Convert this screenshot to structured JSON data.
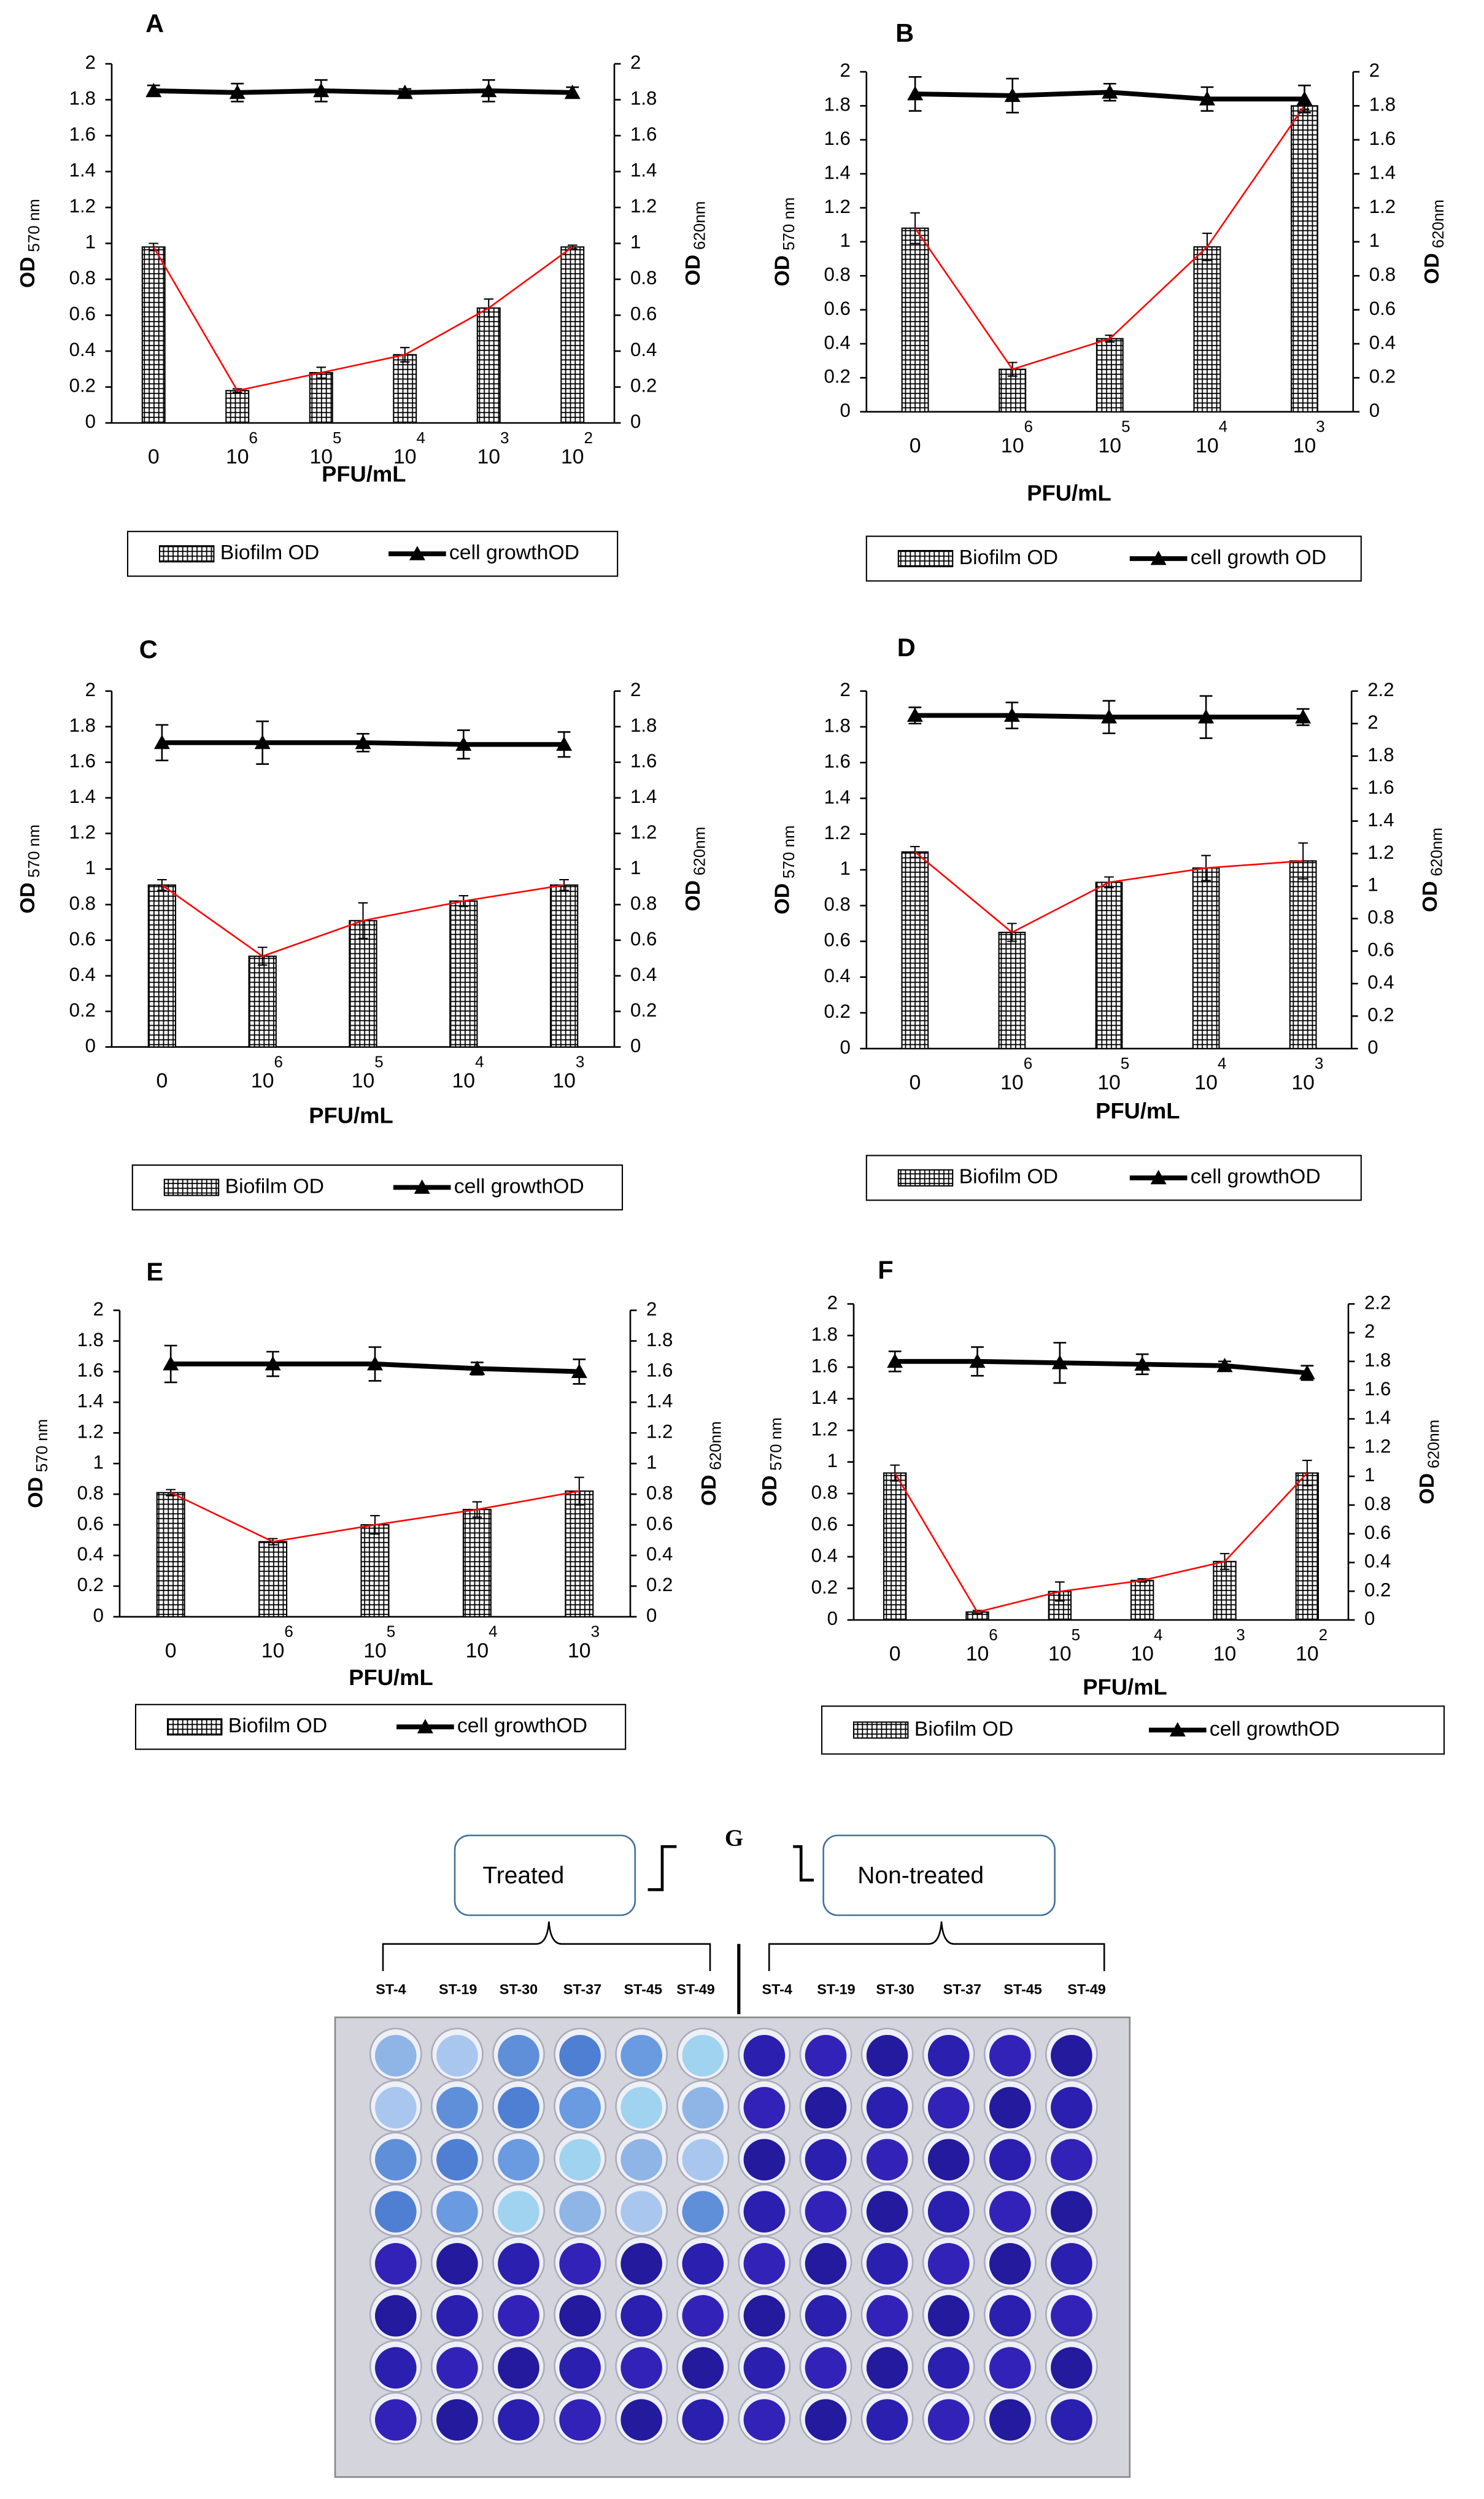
{
  "chart_data": [
    {
      "type": "combo",
      "title": "A",
      "x_label": "PFU/mL",
      "y_label": "OD",
      "y_label_sub": "570 nm",
      "y2_label": "OD",
      "y2_label_sub": "620nm",
      "categories": [
        "0",
        "10",
        "10",
        "10",
        "10",
        "10"
      ],
      "category_exponents": [
        null,
        "6",
        "5",
        "4",
        "3",
        "2"
      ],
      "ylim": [
        0,
        2
      ],
      "yticks": [
        0,
        0.2,
        0.4,
        0.6,
        0.8,
        1,
        1.2,
        1.4,
        1.6,
        1.8,
        2
      ],
      "y2lim": [
        0,
        2
      ],
      "y2ticks": [
        0,
        0.2,
        0.4,
        0.6,
        0.8,
        1,
        1.2,
        1.4,
        1.6,
        1.8,
        2
      ],
      "series": [
        {
          "name": "Biofilm OD",
          "type": "bar",
          "color": "#000000",
          "line_color": "#ff0000",
          "values": [
            0.98,
            0.18,
            0.28,
            0.38,
            0.64,
            0.98
          ],
          "errors": [
            0.02,
            0.01,
            0.03,
            0.04,
            0.05,
            0.01
          ]
        },
        {
          "name": "cell growthOD",
          "type": "line",
          "axis": "y2",
          "color": "#000000",
          "values": [
            1.85,
            1.84,
            1.85,
            1.84,
            1.85,
            1.84
          ],
          "errors": [
            0.03,
            0.05,
            0.06,
            0.02,
            0.06,
            0.03
          ]
        }
      ]
    },
    {
      "type": "combo",
      "title": "B",
      "x_label": "PFU/mL",
      "y_label": "OD",
      "y_label_sub": "570 nm",
      "y2_label": "OD",
      "y2_label_sub": "620nm",
      "categories": [
        "0",
        "10",
        "10",
        "10",
        "10"
      ],
      "category_exponents": [
        null,
        "6",
        "5",
        "4",
        "3"
      ],
      "ylim": [
        0,
        2
      ],
      "yticks": [
        0,
        0.2,
        0.4,
        0.6,
        0.8,
        1,
        1.2,
        1.4,
        1.6,
        1.8,
        2
      ],
      "y2lim": [
        0,
        2
      ],
      "y2ticks": [
        0,
        0.2,
        0.4,
        0.6,
        0.8,
        1,
        1.2,
        1.4,
        1.6,
        1.8,
        2
      ],
      "series": [
        {
          "name": "Biofilm OD",
          "type": "bar",
          "color": "#000000",
          "line_color": "#ff0000",
          "values": [
            1.08,
            0.25,
            0.43,
            0.97,
            1.8
          ],
          "errors": [
            0.09,
            0.04,
            0.02,
            0.08,
            0.02
          ]
        },
        {
          "name": "cell growth OD",
          "type": "line",
          "axis": "y2",
          "color": "#000000",
          "values": [
            1.87,
            1.86,
            1.88,
            1.84,
            1.84
          ],
          "errors": [
            0.1,
            0.1,
            0.05,
            0.07,
            0.08
          ]
        }
      ]
    },
    {
      "type": "combo",
      "title": "C",
      "x_label": "PFU/mL",
      "y_label": "OD",
      "y_label_sub": "570 nm",
      "y2_label": "OD",
      "y2_label_sub": "620nm",
      "categories": [
        "0",
        "10",
        "10",
        "10",
        "10"
      ],
      "category_exponents": [
        null,
        "6",
        "5",
        "4",
        "3"
      ],
      "ylim": [
        0,
        2
      ],
      "yticks": [
        0,
        0.2,
        0.4,
        0.6,
        0.8,
        1,
        1.2,
        1.4,
        1.6,
        1.8,
        2
      ],
      "y2lim": [
        0,
        2
      ],
      "y2ticks": [
        0,
        0.2,
        0.4,
        0.6,
        0.8,
        1,
        1.2,
        1.4,
        1.6,
        1.8,
        2
      ],
      "series": [
        {
          "name": "Biofilm OD",
          "type": "bar",
          "color": "#000000",
          "line_color": "#ff0000",
          "values": [
            0.91,
            0.51,
            0.71,
            0.82,
            0.91
          ],
          "errors": [
            0.03,
            0.05,
            0.1,
            0.03,
            0.03
          ]
        },
        {
          "name": "cell growthOD",
          "type": "line",
          "axis": "y2",
          "color": "#000000",
          "values": [
            1.71,
            1.71,
            1.71,
            1.7,
            1.7
          ],
          "errors": [
            0.1,
            0.12,
            0.05,
            0.08,
            0.07
          ]
        }
      ]
    },
    {
      "type": "combo",
      "title": "D",
      "x_label": "PFU/mL",
      "y_label": "OD",
      "y_label_sub": "570 nm",
      "y2_label": "OD",
      "y2_label_sub": "620nm",
      "categories": [
        "0",
        "10",
        "10",
        "10",
        "10"
      ],
      "category_exponents": [
        null,
        "6",
        "5",
        "4",
        "3"
      ],
      "ylim": [
        0,
        2
      ],
      "yticks": [
        0,
        0.2,
        0.4,
        0.6,
        0.8,
        1,
        1.2,
        1.4,
        1.6,
        1.8,
        2
      ],
      "y2lim": [
        0,
        2.2
      ],
      "y2ticks": [
        0,
        0.2,
        0.4,
        0.6,
        0.8,
        1,
        1.2,
        1.4,
        1.6,
        1.8,
        2,
        2.2
      ],
      "series": [
        {
          "name": "Biofilm OD",
          "type": "bar",
          "color": "#000000",
          "line_color": "#ff0000",
          "values": [
            1.1,
            0.65,
            0.93,
            1.01,
            1.05
          ],
          "errors": [
            0.03,
            0.05,
            0.03,
            0.07,
            0.1
          ]
        },
        {
          "name": "cell growthOD",
          "type": "line",
          "axis": "y2",
          "color": "#000000",
          "values": [
            2.05,
            2.05,
            2.04,
            2.04,
            2.04
          ],
          "errors": [
            0.05,
            0.08,
            0.1,
            0.13,
            0.05
          ]
        }
      ]
    },
    {
      "type": "combo",
      "title": "E",
      "x_label": "PFU/mL",
      "y_label": "OD",
      "y_label_sub": "570 nm",
      "y2_label": "OD",
      "y2_label_sub": "620nm",
      "categories": [
        "0",
        "10",
        "10",
        "10",
        "10"
      ],
      "category_exponents": [
        null,
        "6",
        "5",
        "4",
        "3"
      ],
      "ylim": [
        0,
        2
      ],
      "yticks": [
        0,
        0.2,
        0.4,
        0.6,
        0.8,
        1,
        1.2,
        1.4,
        1.6,
        1.8,
        2
      ],
      "y2lim": [
        0,
        2
      ],
      "y2ticks": [
        0,
        0.2,
        0.4,
        0.6,
        0.8,
        1,
        1.2,
        1.4,
        1.6,
        1.8,
        2
      ],
      "series": [
        {
          "name": "Biofilm OD",
          "type": "bar",
          "color": "#000000",
          "line_color": "#ff0000",
          "values": [
            0.81,
            0.49,
            0.6,
            0.7,
            0.82
          ],
          "errors": [
            0.02,
            0.02,
            0.06,
            0.05,
            0.09
          ]
        },
        {
          "name": "cell growthOD",
          "type": "line",
          "axis": "y2",
          "color": "#000000",
          "values": [
            1.65,
            1.65,
            1.65,
            1.62,
            1.6
          ],
          "errors": [
            0.12,
            0.08,
            0.11,
            0.04,
            0.08
          ]
        }
      ]
    },
    {
      "type": "combo",
      "title": "F",
      "x_label": "PFU/mL",
      "y_label": "OD",
      "y_label_sub": "570 nm",
      "y2_label": "OD",
      "y2_label_sub": "620nm",
      "categories": [
        "0",
        "10",
        "10",
        "10",
        "10",
        "10"
      ],
      "category_exponents": [
        null,
        "6",
        "5",
        "4",
        "3",
        "2"
      ],
      "ylim": [
        0,
        2
      ],
      "yticks": [
        0,
        0.2,
        0.4,
        0.6,
        0.8,
        1,
        1.2,
        1.4,
        1.6,
        1.8,
        2
      ],
      "y2lim": [
        0,
        2.2
      ],
      "y2ticks": [
        0,
        0.2,
        0.4,
        0.6,
        0.8,
        1,
        1.2,
        1.4,
        1.6,
        1.8,
        2,
        2.2
      ],
      "series": [
        {
          "name": "Biofilm OD",
          "type": "bar",
          "color": "#000000",
          "line_color": "#ff0000",
          "values": [
            0.93,
            0.05,
            0.18,
            0.25,
            0.37,
            0.93
          ],
          "errors": [
            0.05,
            0.01,
            0.06,
            0.01,
            0.05,
            0.08
          ]
        },
        {
          "name": "cell growthOD",
          "type": "line",
          "axis": "y2",
          "color": "#000000",
          "values": [
            1.8,
            1.8,
            1.79,
            1.78,
            1.77,
            1.72
          ],
          "errors": [
            0.07,
            0.1,
            0.14,
            0.07,
            0.03,
            0.05
          ]
        }
      ]
    }
  ],
  "panel_g": {
    "title": "G",
    "groups": [
      {
        "label": "Treated",
        "columns": [
          "ST-4",
          "ST-19",
          "ST-30",
          "ST-37",
          "ST-45",
          "ST-49"
        ]
      },
      {
        "label": "Non-treated",
        "columns": [
          "ST-4",
          "ST-19",
          "ST-30",
          "ST-37",
          "ST-45",
          "ST-49"
        ]
      }
    ]
  }
}
